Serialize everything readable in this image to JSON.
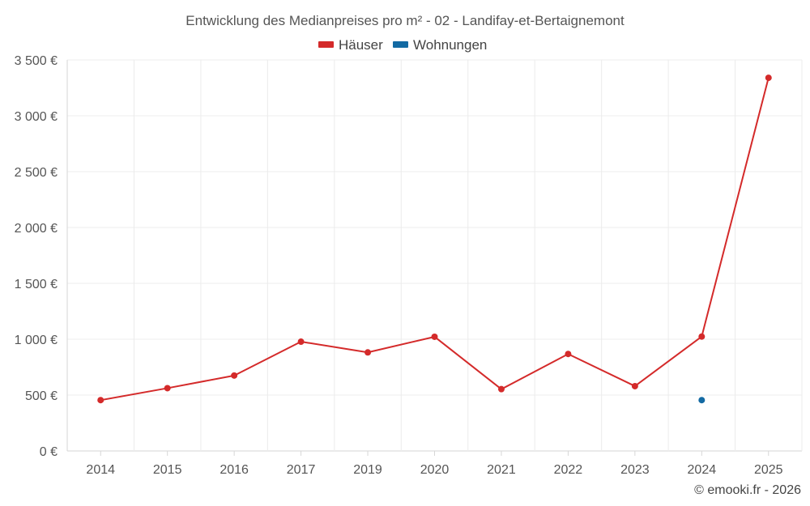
{
  "colors": {
    "houses": "#d42a2a",
    "apartments": "#136aa3"
  },
  "chart_data": {
    "type": "line",
    "title": "Entwicklung des Medianpreises pro m² - 02 - Landifay-et-Bertaignemont",
    "categories": [
      "2014",
      "2015",
      "2016",
      "2017",
      "2019",
      "2020",
      "2021",
      "2022",
      "2023",
      "2024",
      "2025"
    ],
    "series": [
      {
        "name": "Häuser",
        "color_key": "houses",
        "values": [
          455,
          562,
          675,
          978,
          882,
          1022,
          553,
          868,
          580,
          1024,
          3340
        ]
      },
      {
        "name": "Wohnungen",
        "color_key": "apartments",
        "values": [
          null,
          null,
          null,
          null,
          null,
          null,
          null,
          null,
          null,
          455,
          null
        ]
      }
    ],
    "ylim": [
      0,
      3500
    ],
    "yticks": [
      0,
      500,
      1000,
      1500,
      2000,
      2500,
      3000,
      3500
    ],
    "ytick_labels": [
      "0 €",
      "500 €",
      "1 000 €",
      "1 500 €",
      "2 000 €",
      "2 500 €",
      "3 000 €",
      "3 500 €"
    ],
    "xlabel": "",
    "ylabel": "",
    "legend_position": "top-center",
    "grid": true
  },
  "credit": "© emooki.fr - 2026"
}
